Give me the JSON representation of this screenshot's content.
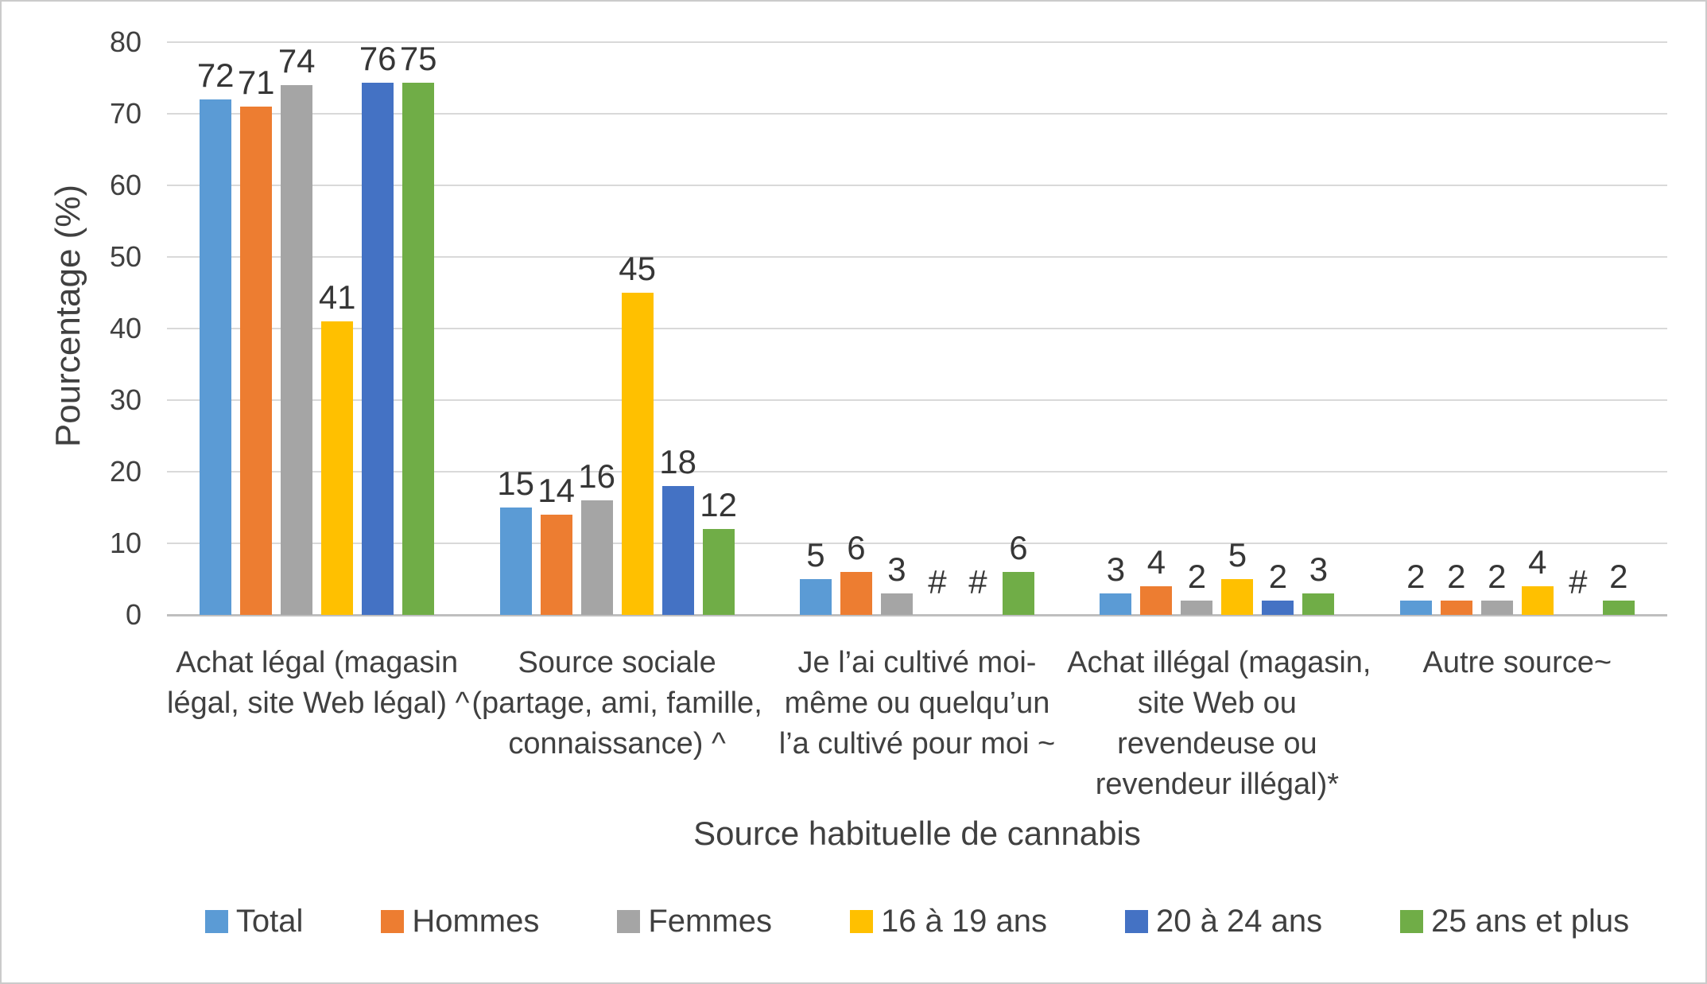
{
  "chart_data": {
    "type": "bar",
    "title": "",
    "xlabel": "Source habituelle de cannabis",
    "ylabel": "Pourcentage (%)",
    "ylim": [
      0,
      80
    ],
    "yticks": [
      0,
      10,
      20,
      30,
      40,
      50,
      60,
      70,
      80
    ],
    "grid": true,
    "legend_position": "bottom",
    "suppressed_symbol": "#",
    "categories": [
      "Achat légal (magasin\nlégal, site Web légal) ^",
      "Source sociale\n(partage, ami, famille,\nconnaissance) ^",
      "Je l’ai cultivé moi-\nmême ou quelqu’un\nl’a cultivé pour moi ~",
      "Achat illégal (magasin,\nsite Web ou\nrevendeuse ou\nrevendeur illégal)*",
      "Autre source~"
    ],
    "series": [
      {
        "name": "Total",
        "color": "#5B9BD5",
        "values": [
          72,
          15,
          5,
          3,
          2
        ]
      },
      {
        "name": "Hommes",
        "color": "#ED7D31",
        "values": [
          71,
          14,
          6,
          4,
          2
        ]
      },
      {
        "name": "Femmes",
        "color": "#A5A5A5",
        "values": [
          74,
          16,
          3,
          2,
          2
        ]
      },
      {
        "name": "16 à 19 ans",
        "color": "#FFC000",
        "values": [
          41,
          45,
          "#",
          5,
          4
        ]
      },
      {
        "name": "20 à 24 ans",
        "color": "#4472C4",
        "values": [
          76,
          18,
          "#",
          2,
          "#"
        ]
      },
      {
        "name": "25 ans et plus",
        "color": "#70AD47",
        "values": [
          75,
          12,
          6,
          3,
          2
        ]
      }
    ]
  }
}
